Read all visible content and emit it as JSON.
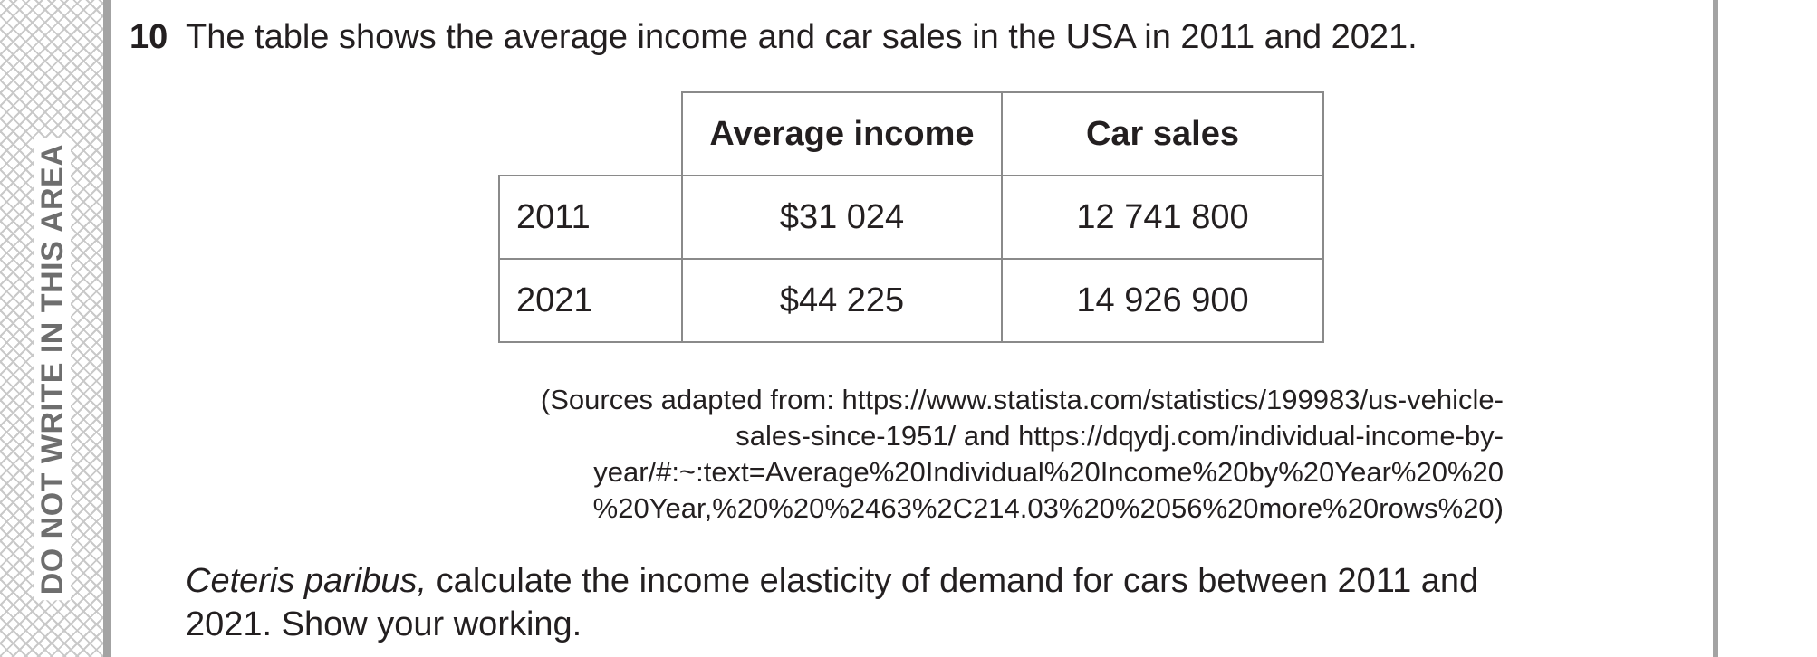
{
  "margin_warning": "DO NOT WRITE IN THIS AREA",
  "question": {
    "number": "10",
    "intro": "The table shows the average income and car sales in the USA in 2011 and 2021.",
    "table": {
      "headers": [
        "",
        "Average income",
        "Car sales"
      ],
      "rows": [
        {
          "year": "2011",
          "income": "$31 024",
          "sales": "12 741 800"
        },
        {
          "year": "2021",
          "income": "$44 225",
          "sales": "14 926 900"
        }
      ]
    },
    "source_lines": [
      "(Sources adapted from: https://www.statista.com/statistics/199983/us-vehicle-",
      "sales-since-1951/ and https://dqydj.com/individual-income-by-",
      "year/#:~:text=Average%20Individual%20Income%20by%20Year%20%20",
      "%20Year,%20%20%2463%2C214.03%20%2056%20more%20rows%20)"
    ],
    "prompt_italic": "Ceteris paribus,",
    "prompt_line1_rest": " calculate the income elasticity of demand for cars between 2011 and",
    "prompt_line2": "2021. Show your working."
  }
}
